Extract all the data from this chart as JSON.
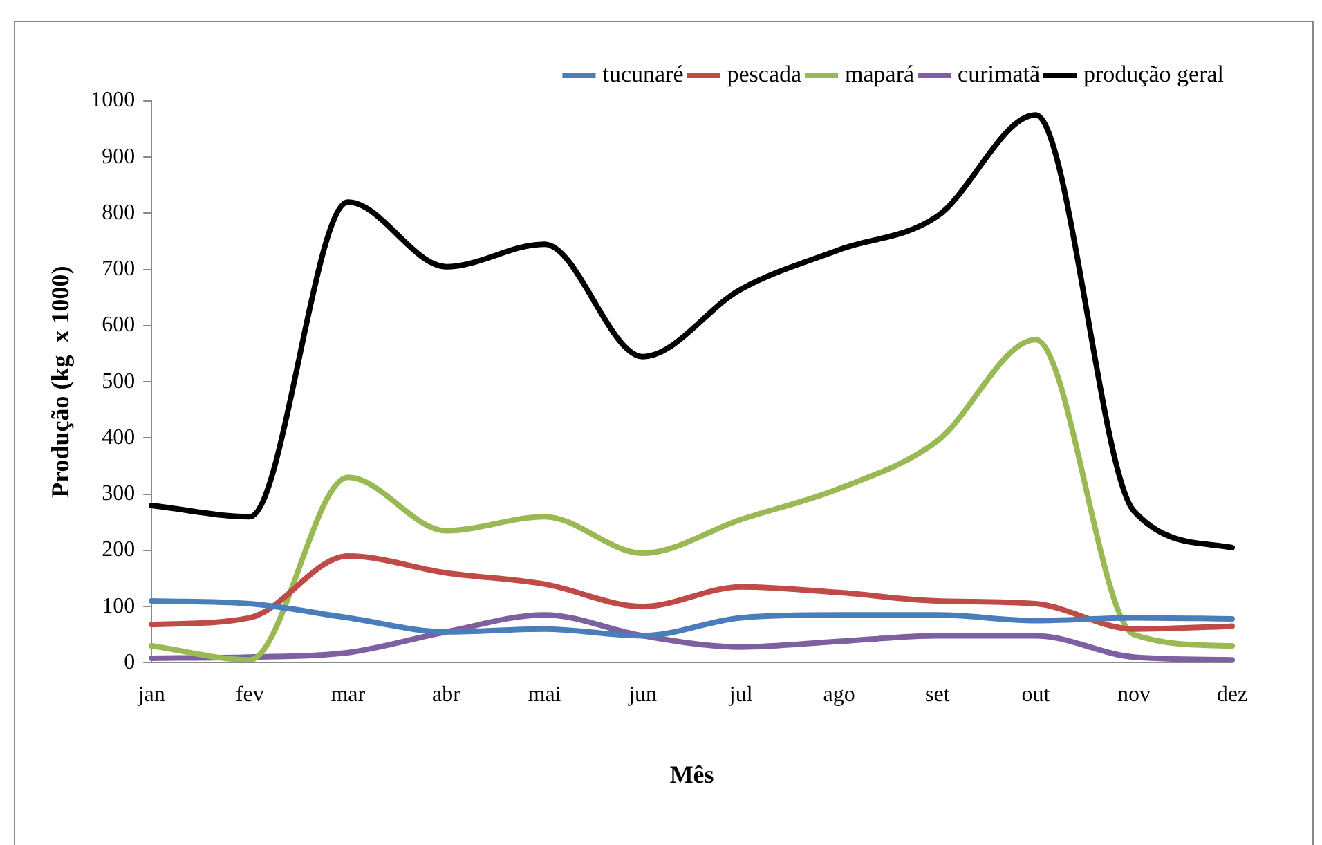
{
  "chart_data": {
    "type": "line",
    "xlabel": "Mês",
    "ylabel": "Produção (kg  x 1000)",
    "categories": [
      "jan",
      "fev",
      "mar",
      "abr",
      "mai",
      "jun",
      "jul",
      "ago",
      "set",
      "out",
      "nov",
      "dez"
    ],
    "series": [
      {
        "name": "tucunaré",
        "color": "#4a7ebb",
        "values": [
          110,
          105,
          80,
          55,
          60,
          48,
          80,
          85,
          85,
          75,
          80,
          78
        ]
      },
      {
        "name": "pescada",
        "color": "#be4b48",
        "values": [
          68,
          80,
          190,
          160,
          140,
          100,
          135,
          125,
          110,
          105,
          60,
          65
        ]
      },
      {
        "name": "mapará",
        "color": "#98b954",
        "values": [
          30,
          5,
          330,
          235,
          260,
          195,
          255,
          310,
          395,
          575,
          50,
          30
        ]
      },
      {
        "name": "curimatã",
        "color": "#7d60a0",
        "values": [
          8,
          10,
          18,
          55,
          85,
          48,
          28,
          38,
          48,
          48,
          10,
          5
        ]
      },
      {
        "name": "produção geral",
        "color": "#000000",
        "values": [
          280,
          260,
          820,
          705,
          745,
          545,
          665,
          735,
          795,
          975,
          270,
          205
        ]
      }
    ],
    "ylim": [
      0,
      1000
    ],
    "yticks": [
      0,
      100,
      200,
      300,
      400,
      500,
      600,
      700,
      800,
      900,
      1000
    ],
    "grid": false,
    "legend": "top right",
    "marker": "none",
    "line_style": "solid"
  }
}
